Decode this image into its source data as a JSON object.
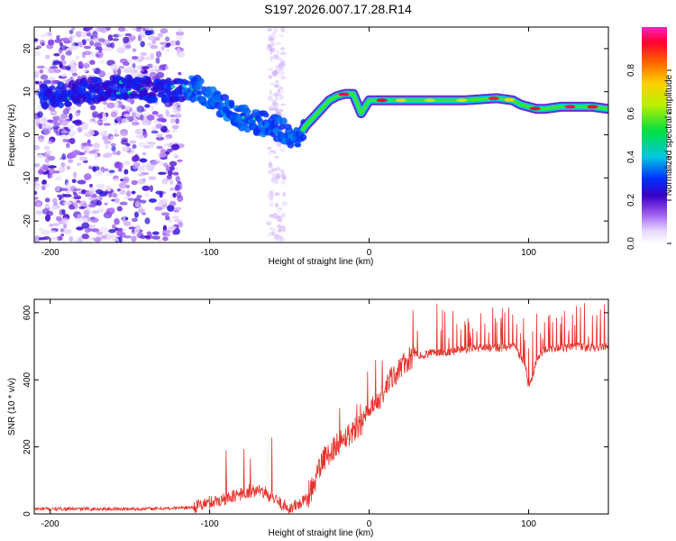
{
  "figure_title": "S197.2026.007.17.28.R14",
  "colors": {
    "snr_line": "#e8312b",
    "axis": "#000000",
    "spectral_dark": "#3a00a8",
    "background": "#ffffff"
  },
  "chart_data": [
    {
      "type": "heatmap",
      "title": "S197.2026.007.17.28.R14",
      "xlabel": "Height of straight line (km)",
      "ylabel": "Frequency (Hz)",
      "xlim": [
        -210,
        150
      ],
      "ylim": [
        -25,
        25
      ],
      "xticks": [
        -200,
        -100,
        0,
        100
      ],
      "xtick_labels": [
        "-200",
        "-100",
        "0",
        "100"
      ],
      "yticks": [
        20,
        10,
        0,
        -10,
        -20
      ],
      "ytick_labels": [
        "20",
        "10",
        "0",
        "-10",
        "-20"
      ],
      "colorbar": {
        "label": "Normalized spectral amplitude",
        "range": [
          0.0,
          1.0
        ],
        "ticks": [
          0.0,
          0.2,
          0.4,
          0.6,
          0.8
        ],
        "tick_labels": [
          "0.0",
          "0.2",
          "0.4",
          "0.6",
          "0.8"
        ]
      },
      "ridge": {
        "height_km": [
          -200,
          -180,
          -160,
          -140,
          -120,
          -110,
          -100,
          -90,
          -80,
          -70,
          -60,
          -50,
          -45,
          -40,
          -35,
          -30,
          -25,
          -20,
          -15,
          -10,
          -5,
          0,
          10,
          20,
          40,
          60,
          80,
          90,
          95,
          100,
          105,
          110,
          120,
          140,
          150
        ],
        "frequency_hz": [
          9,
          10,
          11,
          10.5,
          10,
          11,
          9,
          6,
          4,
          3,
          2,
          0,
          -1,
          2,
          4,
          6,
          8,
          9,
          9.5,
          9.5,
          5,
          8,
          8,
          8,
          8,
          8,
          8.5,
          8,
          7,
          6.5,
          6,
          6,
          6.5,
          6.5,
          6
        ]
      }
    },
    {
      "type": "line",
      "xlabel": "Height of straight line (km)",
      "ylabel": "SNR (10 * v/v)",
      "xlim": [
        -210,
        150
      ],
      "ylim": [
        0,
        640
      ],
      "xticks": [
        -200,
        -100,
        0,
        100
      ],
      "xtick_labels": [
        "-200",
        "-100",
        "0",
        "100"
      ],
      "yticks": [
        0,
        200,
        400,
        600
      ],
      "ytick_labels": [
        "0",
        "200",
        "400",
        "600"
      ],
      "series": [
        {
          "name": "SNR",
          "x": [
            -210,
            -190,
            -170,
            -150,
            -130,
            -110,
            -100,
            -90,
            -80,
            -70,
            -60,
            -50,
            -40,
            -35,
            -30,
            -25,
            -20,
            -15,
            -10,
            -5,
            0,
            5,
            10,
            15,
            20,
            25,
            30,
            40,
            50,
            60,
            70,
            80,
            90,
            95,
            98,
            100,
            102,
            105,
            110,
            120,
            130,
            140,
            150
          ],
          "y": [
            15,
            15,
            15,
            15,
            16,
            20,
            35,
            45,
            60,
            70,
            45,
            15,
            40,
            80,
            150,
            180,
            210,
            230,
            250,
            270,
            300,
            330,
            370,
            410,
            440,
            460,
            470,
            480,
            485,
            490,
            495,
            495,
            500,
            470,
            440,
            380,
            400,
            460,
            490,
            495,
            500,
            495,
            500
          ]
        }
      ]
    }
  ]
}
